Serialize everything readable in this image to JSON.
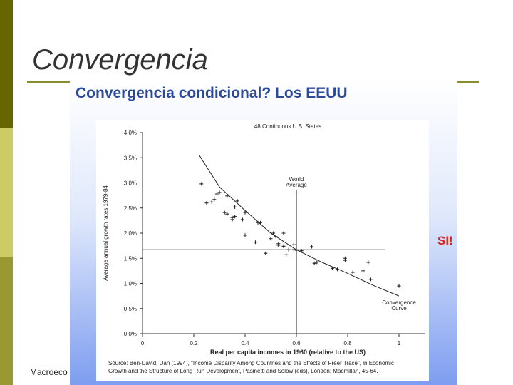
{
  "slide": {
    "title": "Convergencia",
    "footer": "Macroeco"
  },
  "chart_data": {
    "type": "scatter",
    "heading": "Convergencia condicional? Los EEUU",
    "side_note": "SI!",
    "title": "48 Continuous U.S. States",
    "x_label": "Real per capita incomes in 1960 (relative to the US)",
    "y_label": "Average annual growth rates 1979-84",
    "source": [
      "Source: Ben-David, Dan (1994), \"Income Disparity Among Countries and the Effects of Freer Trace\", in Economic",
      "Growth and the Structure of Long Run Development, Pasinetti and Solow (eds), London: Macmillan, 45-64."
    ],
    "xlim": [
      0,
      1.1
    ],
    "ylim": [
      0,
      4
    ],
    "xticks": [
      0,
      0.2,
      0.4,
      0.6,
      0.8,
      1
    ],
    "yticks": [
      {
        "value": 0,
        "label": "0.0%"
      },
      {
        "value": 0.5,
        "label": "0.5%"
      },
      {
        "value": 1,
        "label": "1.0%"
      },
      {
        "value": 1.5,
        "label": "1.5%"
      },
      {
        "value": 2,
        "label": "2.0%"
      },
      {
        "value": 2.5,
        "label": "2.5%"
      },
      {
        "value": 3,
        "label": "3.0%"
      },
      {
        "value": 3.5,
        "label": "3.5%"
      },
      {
        "value": 4,
        "label": "4.0%"
      }
    ],
    "color": "#222222",
    "x": [
      0.23,
      0.25,
      0.27,
      0.28,
      0.29,
      0.3,
      0.33,
      0.32,
      0.33,
      0.35,
      0.35,
      0.36,
      0.36,
      0.37,
      0.39,
      0.4,
      0.4,
      0.44,
      0.45,
      0.46,
      0.48,
      0.5,
      0.51,
      0.52,
      0.53,
      0.53,
      0.55,
      0.55,
      0.56,
      0.57,
      0.59,
      0.59,
      0.6,
      0.62,
      0.66,
      0.67,
      0.68,
      0.74,
      0.76,
      0.79,
      0.79,
      0.82,
      0.86,
      0.88,
      0.89,
      1.0
    ],
    "values": [
      2.98,
      2.6,
      2.62,
      2.67,
      2.78,
      2.81,
      2.74,
      2.41,
      2.38,
      2.31,
      2.27,
      2.33,
      2.52,
      2.64,
      2.27,
      2.41,
      1.96,
      1.82,
      2.21,
      2.21,
      1.6,
      1.89,
      2.0,
      1.93,
      1.76,
      1.79,
      1.74,
      2.0,
      1.57,
      1.67,
      1.67,
      1.77,
      1.66,
      1.65,
      1.73,
      1.4,
      1.42,
      1.3,
      1.28,
      1.46,
      1.5,
      1.22,
      1.25,
      1.42,
      1.08,
      0.95
    ],
    "curve": {
      "label": [
        "Convergence",
        "Curve"
      ],
      "x": [
        0.22,
        0.3,
        0.4,
        0.5,
        0.6,
        0.7,
        0.8,
        0.9,
        1.0
      ],
      "values": [
        3.56,
        2.92,
        2.45,
        2.0,
        1.67,
        1.42,
        1.2,
        0.96,
        0.75
      ]
    },
    "reference": {
      "label": [
        "World",
        "Average"
      ],
      "x": 0.6,
      "y": 1.67
    }
  }
}
